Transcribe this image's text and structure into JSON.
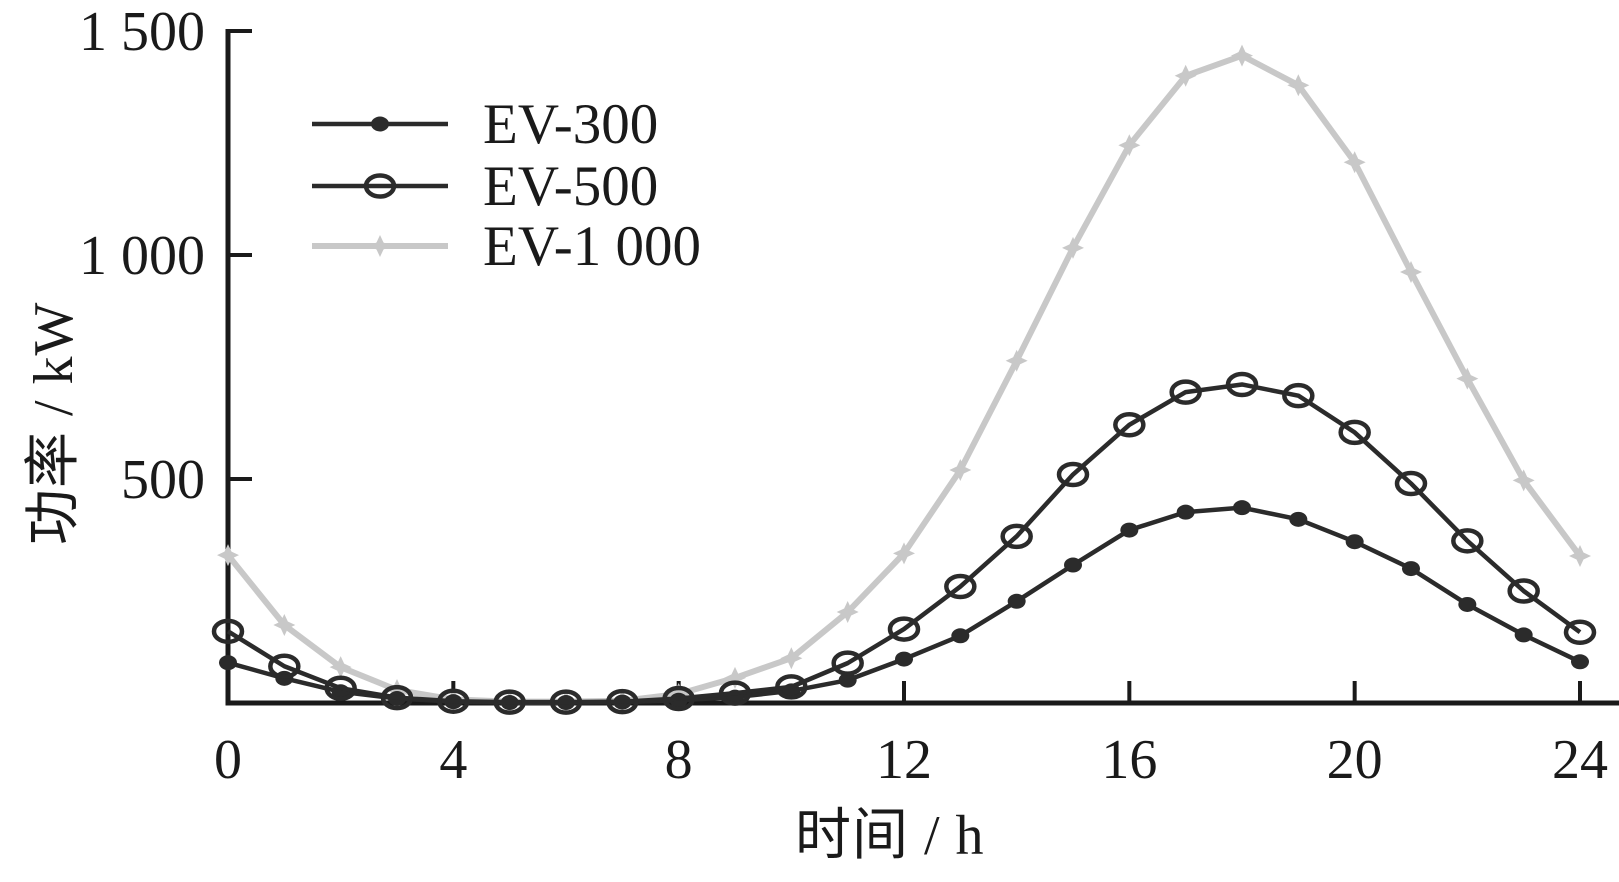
{
  "colors": {
    "dark_series": "#2b2b2b",
    "light_series": "#c8c8c8",
    "axis": "#1a1a1a",
    "text": "#1a1a1a",
    "background": "#ffffff"
  },
  "chart_data": {
    "type": "line",
    "title": "",
    "xlabel": "时间 / h",
    "ylabel": "功率 / kW",
    "xlim": [
      0,
      24
    ],
    "ylim": [
      0,
      1500
    ],
    "grid": false,
    "legend_position": "top-left",
    "x_ticks": [
      0,
      4,
      8,
      12,
      16,
      20,
      24
    ],
    "x_tick_labels": [
      "0",
      "4",
      "8",
      "12",
      "16",
      "20",
      "24"
    ],
    "y_ticks": [
      500,
      1000,
      1500
    ],
    "y_tick_labels": [
      "500",
      "1 000",
      "1 500"
    ],
    "x": [
      0,
      1,
      2,
      3,
      4,
      5,
      6,
      7,
      8,
      9,
      10,
      11,
      12,
      13,
      14,
      15,
      16,
      17,
      18,
      19,
      20,
      21,
      22,
      23,
      24
    ],
    "series": [
      {
        "name": "EV-300",
        "color": "#2b2b2b",
        "marker": "filled-dot",
        "values": [
          90,
          55,
          25,
          10,
          3,
          1,
          1,
          2,
          6,
          13,
          27,
          51,
          98,
          150,
          227,
          308,
          386,
          426,
          436,
          410,
          360,
          300,
          220,
          152,
          92
        ]
      },
      {
        "name": "EV-500",
        "color": "#2b2b2b",
        "marker": "open-circle",
        "values": [
          160,
          82,
          33,
          12,
          4,
          2,
          2,
          3,
          10,
          22,
          36,
          89,
          165,
          260,
          372,
          510,
          621,
          694,
          711,
          686,
          604,
          490,
          362,
          250,
          158
        ]
      },
      {
        "name": "EV-1 000",
        "color": "#c8c8c8",
        "marker": "star4",
        "values": [
          330,
          174,
          80,
          29,
          8,
          3,
          3,
          5,
          20,
          56,
          100,
          203,
          334,
          520,
          764,
          1016,
          1245,
          1400,
          1445,
          1379,
          1207,
          962,
          724,
          497,
          328
        ]
      }
    ]
  }
}
